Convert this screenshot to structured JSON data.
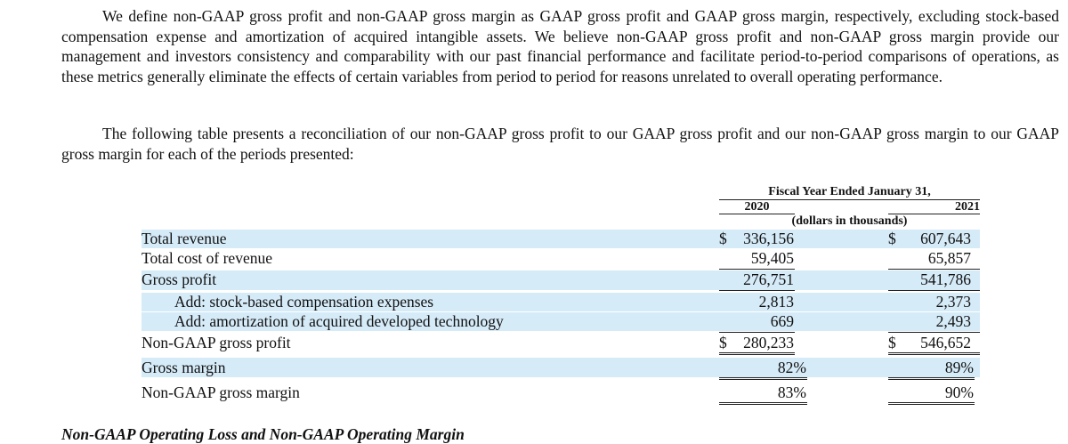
{
  "intro": {
    "paragraph1": "We define non-GAAP gross profit and non-GAAP gross margin as GAAP gross profit and GAAP gross margin, respectively, excluding stock-based compensation expense and amortization of acquired intangible assets. We believe non-GAAP gross profit and non-GAAP gross margin provide our management and investors consistency and comparability with our past financial performance and facilitate period-to-period comparisons of operations, as these metrics generally eliminate the effects of certain variables from period to period for reasons unrelated to overall operating performance.",
    "paragraph2": "The following table presents a reconciliation of our non-GAAP gross profit to our GAAP gross profit and our non-GAAP gross margin to our GAAP gross margin for each of the periods presented:"
  },
  "table": {
    "header": "Fiscal Year Ended January 31,",
    "years": [
      "2020",
      "2021"
    ],
    "units": "(dollars in thousands)",
    "rows": [
      {
        "label": "Total revenue",
        "dollar": "$",
        "v2020": "336,156",
        "v2021": "607,643"
      },
      {
        "label": "Total cost of revenue",
        "dollar": "",
        "v2020": "59,405",
        "v2021": "65,857"
      },
      {
        "label": "Gross profit",
        "dollar": "",
        "v2020": "276,751",
        "v2021": "541,786"
      },
      {
        "label": "Add: stock-based compensation expenses",
        "dollar": "",
        "v2020": "2,813",
        "v2021": "2,373"
      },
      {
        "label": "Add: amortization of acquired developed technology",
        "dollar": "",
        "v2020": "669",
        "v2021": "2,493"
      },
      {
        "label": "Non-GAAP gross profit",
        "dollar": "$",
        "v2020": "280,233",
        "v2021": "546,652"
      },
      {
        "label": "Gross margin",
        "dollar": "",
        "v2020": "82%",
        "v2021": "89%"
      },
      {
        "label": "Non-GAAP gross margin",
        "dollar": "",
        "v2020": "83%",
        "v2021": "90%"
      }
    ]
  },
  "next_section_heading": "Non-GAAP Operating Loss and Non-GAAP Operating Margin"
}
